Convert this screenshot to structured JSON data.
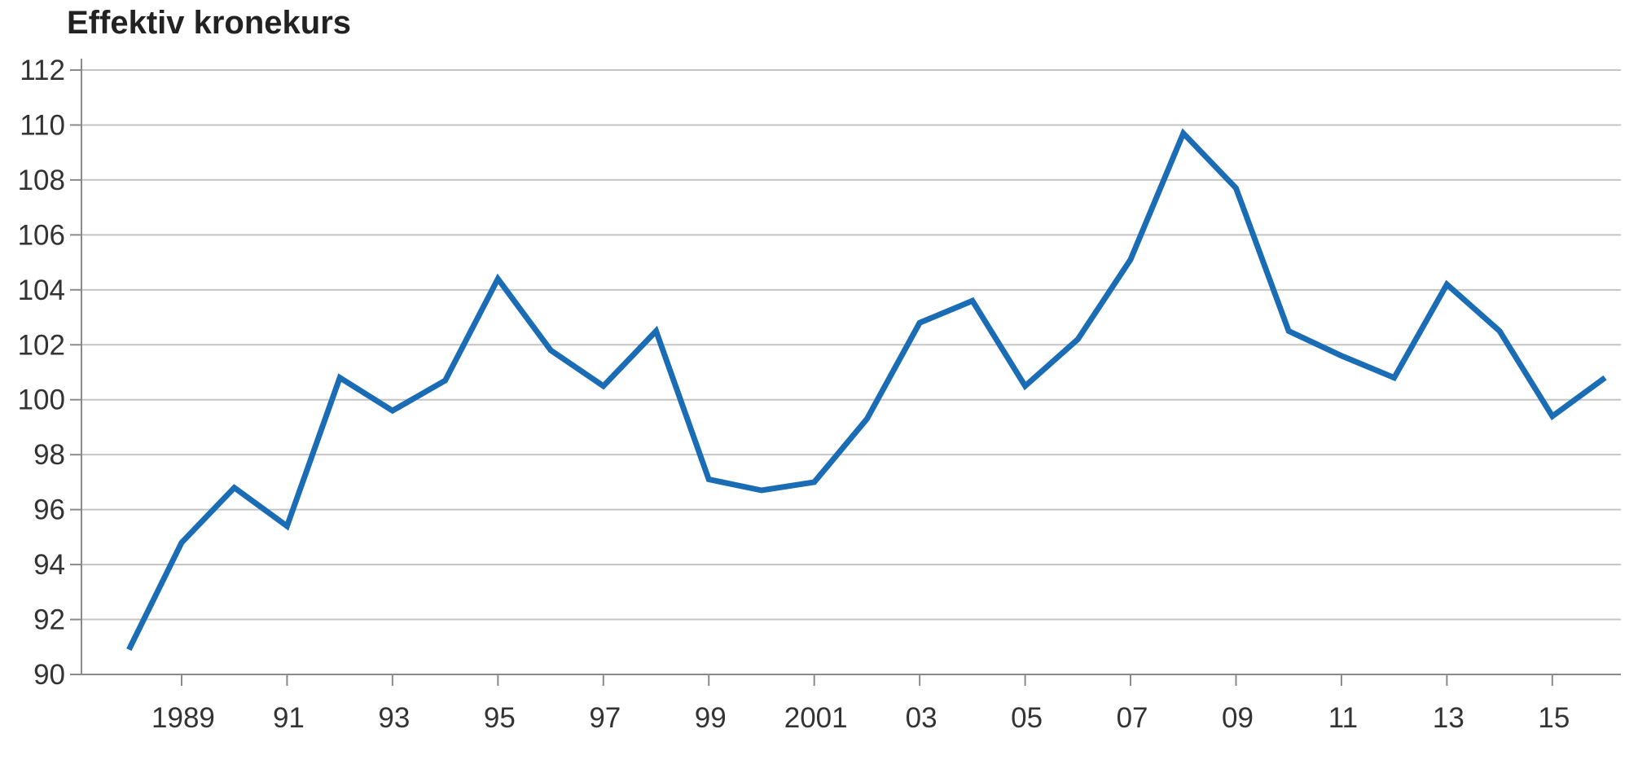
{
  "chart_data": {
    "type": "line",
    "title": "Effektiv kronekurs",
    "xlabel": "",
    "ylabel": "",
    "x": [
      1988,
      1989,
      1990,
      1991,
      1992,
      1993,
      1994,
      1995,
      1996,
      1997,
      1998,
      1999,
      2000,
      2001,
      2002,
      2003,
      2004,
      2005,
      2006,
      2007,
      2008,
      2009,
      2010,
      2011,
      2012,
      2013,
      2014,
      2015,
      2016
    ],
    "series": [
      {
        "values": [
          90.9,
          94.8,
          96.8,
          95.4,
          100.8,
          99.6,
          100.7,
          104.4,
          101.8,
          100.5,
          102.5,
          97.1,
          96.7,
          97.0,
          99.3,
          102.8,
          103.6,
          100.5,
          102.2,
          105.1,
          109.7,
          107.7,
          102.5,
          101.6,
          100.8,
          104.2,
          102.5,
          99.4,
          100.8
        ],
        "color": "#1a6db5"
      }
    ],
    "x_tick_years": [
      1989,
      1991,
      1993,
      1995,
      1997,
      1999,
      2001,
      2003,
      2005,
      2007,
      2009,
      2011,
      2013,
      2015
    ],
    "x_tick_labels": [
      "1989",
      "91",
      "93",
      "95",
      "97",
      "99",
      "2001",
      "03",
      "05",
      "07",
      "09",
      "11",
      "13",
      "15"
    ],
    "y_ticks": [
      90,
      92,
      94,
      96,
      98,
      100,
      102,
      104,
      106,
      108,
      110,
      112
    ],
    "xlim": [
      1987.1,
      2016.3
    ],
    "ylim": [
      90,
      112
    ],
    "grid": true,
    "legend": "none",
    "colors": {
      "line": "#1a6db5",
      "grid": "#c4c4c4",
      "axis": "#8a8a8a",
      "text": "#333333"
    }
  }
}
